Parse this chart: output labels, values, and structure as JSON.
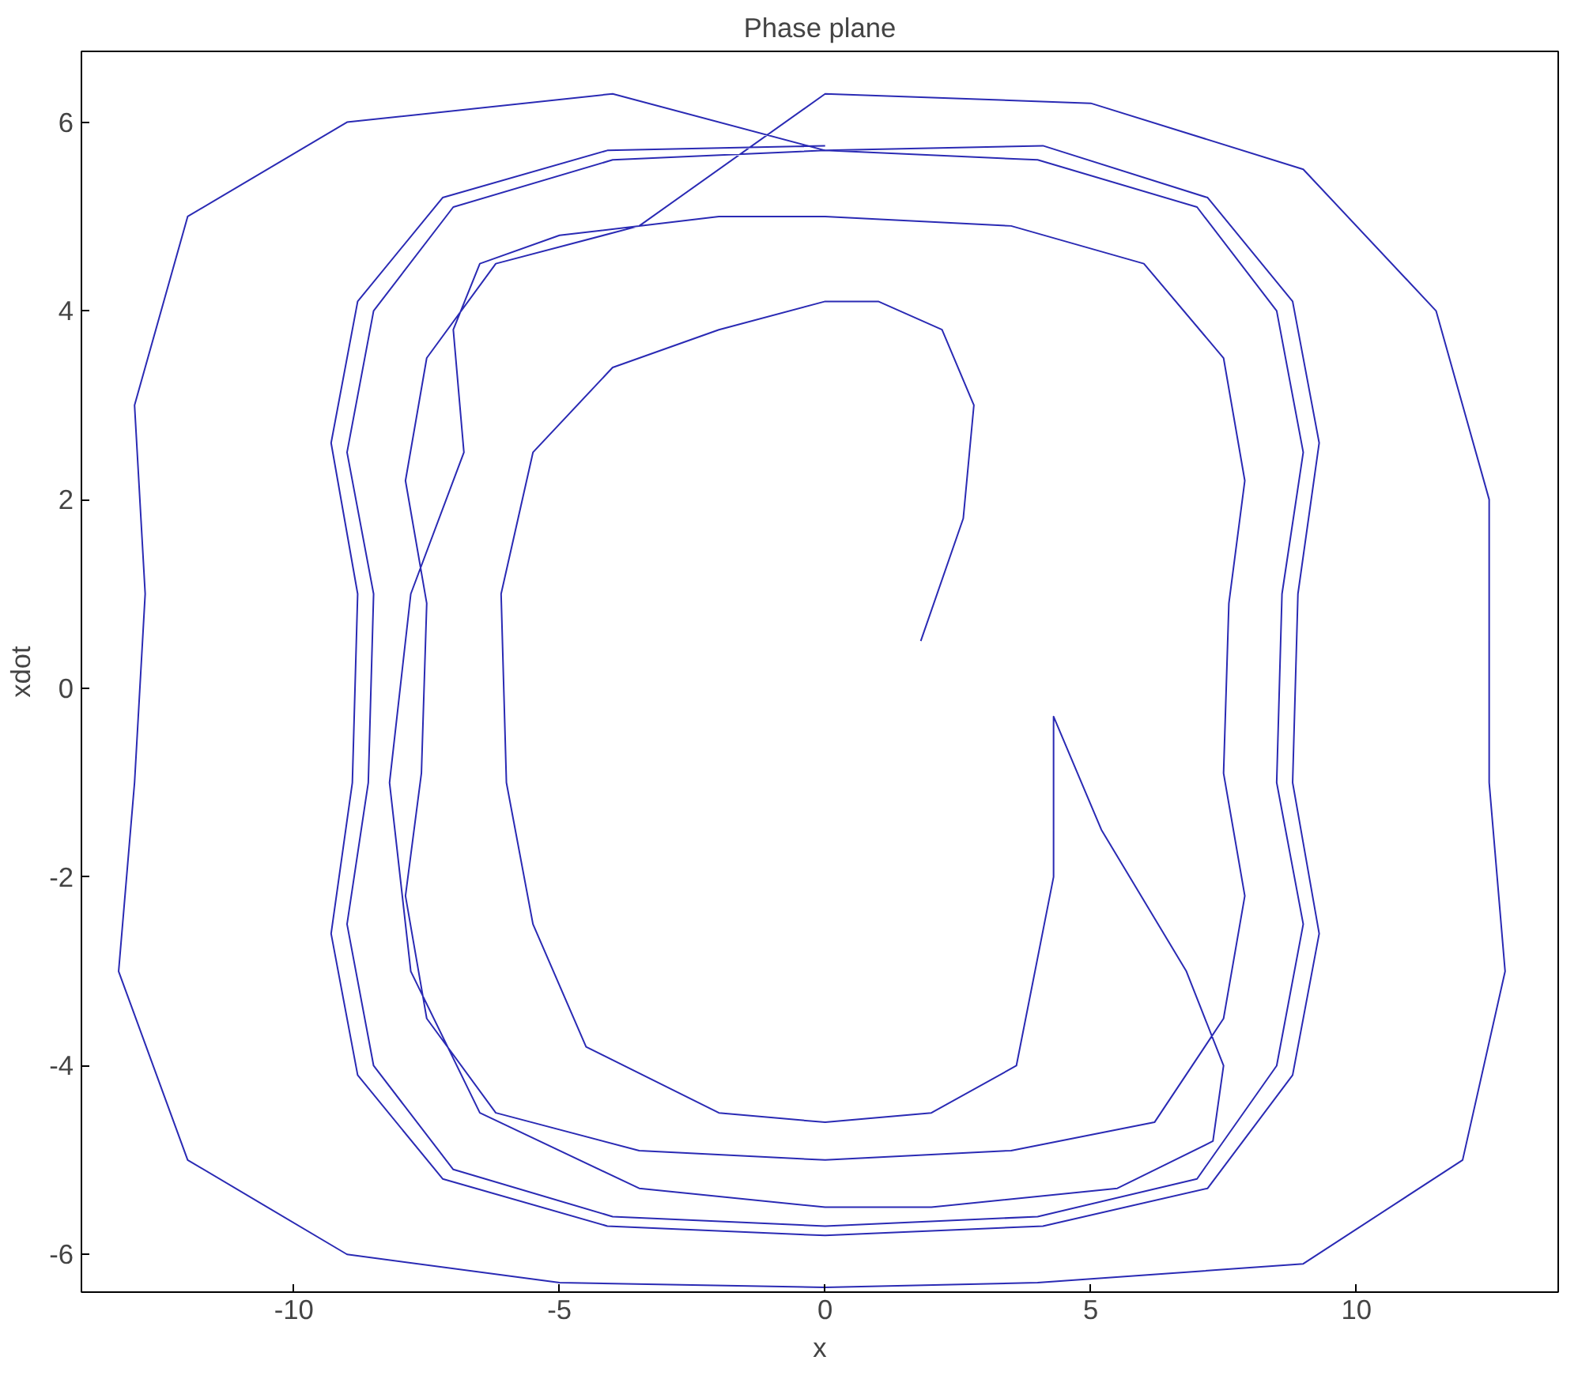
{
  "chart_data": {
    "type": "line",
    "title": "Phase plane",
    "xlabel": "x",
    "ylabel": "xdot",
    "xlim": [
      -14,
      13.8
    ],
    "ylim": [
      -6.4,
      6.75
    ],
    "xticks": [
      -10,
      -5,
      0,
      5,
      10
    ],
    "yticks": [
      -6,
      -4,
      -2,
      0,
      2,
      4,
      6
    ],
    "line_style": "solid",
    "series": [
      {
        "color": "#2a2ab4",
        "x": [
          1.8,
          2.6,
          2.8,
          2.2,
          1.0,
          0,
          -2,
          -4,
          -5.5,
          -6.1,
          -6.0,
          -5.5,
          -4.5,
          -2,
          0,
          2,
          3.6,
          4.3,
          4.3,
          5.2,
          6.8,
          7.5,
          7.3,
          5.5,
          2.0,
          0,
          -3.5,
          -6.5,
          -7.8,
          -8.2,
          -7.8,
          -6.8,
          -7.0,
          -6.5,
          -5.0,
          -2.0,
          0,
          3.5,
          6,
          7.5,
          7.9,
          7.6,
          7.5,
          7.9,
          7.5,
          6.2,
          3.5,
          0,
          -3.5,
          -6.2,
          -7.5,
          -7.9,
          -7.6,
          -7.5,
          -7.9,
          -7.5,
          -6.2,
          -3.5,
          0,
          5,
          9,
          11.5,
          12.5,
          12.5,
          12.8,
          12,
          9,
          4,
          0,
          -5,
          -9,
          -12,
          -13.3,
          -13,
          -12.8,
          -13,
          -12,
          -9,
          -4,
          0,
          4,
          7,
          8.5,
          9,
          8.6,
          8.5,
          9,
          8.5,
          7,
          4,
          0,
          -4,
          -7,
          -8.5,
          -9,
          -8.6,
          -8.5,
          -9,
          -8.5,
          -7,
          -4,
          0,
          4.1,
          7.2,
          8.8,
          9.3,
          8.9,
          8.8,
          9.3,
          8.8,
          7.2,
          4.1,
          0,
          -4.1,
          -7.2,
          -8.8,
          -9.3,
          -8.9,
          -8.8,
          -9.3,
          -8.8,
          -7.2,
          -4.1,
          0
        ],
        "values": [
          0.5,
          1.8,
          3.0,
          3.8,
          4.1,
          4.1,
          3.8,
          3.4,
          2.5,
          1.0,
          -1.0,
          -2.5,
          -3.8,
          -4.5,
          -4.6,
          -4.5,
          -4.0,
          -2.0,
          -0.3,
          -1.5,
          -3.0,
          -4.0,
          -4.8,
          -5.3,
          -5.5,
          -5.5,
          -5.3,
          -4.5,
          -3.0,
          -1.0,
          1.0,
          2.5,
          3.8,
          4.5,
          4.8,
          5.0,
          5.0,
          4.9,
          4.5,
          3.5,
          2.2,
          0.9,
          -0.9,
          -2.2,
          -3.5,
          -4.6,
          -4.9,
          -5.0,
          -4.9,
          -4.5,
          -3.5,
          -2.2,
          -0.9,
          0.9,
          2.2,
          3.5,
          4.5,
          4.9,
          6.3,
          6.2,
          5.5,
          4.0,
          2.0,
          -1.0,
          -3.0,
          -5.0,
          -6.1,
          -6.3,
          -6.35,
          -6.3,
          -6.0,
          -5.0,
          -3.0,
          -1.0,
          1.0,
          3.0,
          5.0,
          6.0,
          6.3,
          5.7,
          5.6,
          5.1,
          4.0,
          2.5,
          1.0,
          -1.0,
          -2.5,
          -4.0,
          -5.2,
          -5.6,
          -5.7,
          -5.6,
          -5.1,
          -4.0,
          -2.5,
          -1.0,
          1.0,
          2.5,
          4.0,
          5.1,
          5.6,
          5.7,
          5.75,
          5.2,
          4.1,
          2.6,
          1.0,
          -1.0,
          -2.6,
          -4.1,
          -5.3,
          -5.7,
          -5.8,
          -5.7,
          -5.2,
          -4.1,
          -2.6,
          -1.0,
          1.0,
          2.6,
          4.1,
          5.2,
          5.7,
          5.75
        ]
      }
    ]
  }
}
